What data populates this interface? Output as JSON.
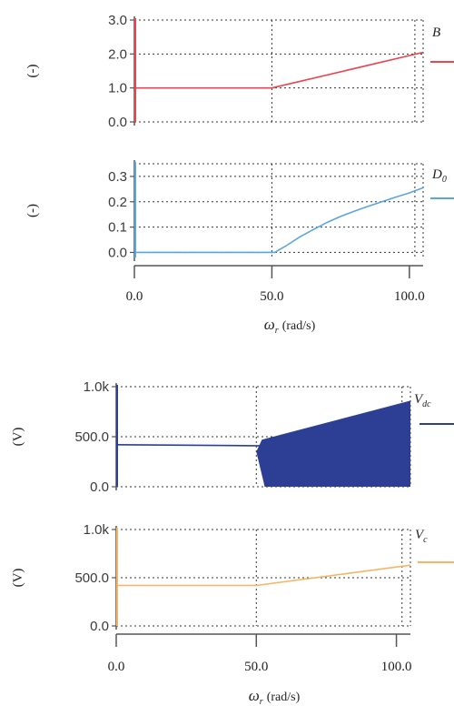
{
  "chart_data": [
    {
      "type": "line",
      "ylabel": "(-)",
      "legend": {
        "main": "B",
        "sub": "",
        "placement": "right"
      },
      "color": "#e8454f",
      "xlim": [
        0,
        105
      ],
      "ylim": [
        0,
        3
      ],
      "yticks": [
        {
          "value": 0,
          "label": "0.0"
        },
        {
          "value": 1,
          "label": "1.0"
        },
        {
          "value": 2,
          "label": "2.0"
        },
        {
          "value": 3,
          "label": "3.0"
        }
      ],
      "vlines": [
        50,
        102
      ],
      "series": [
        {
          "x": [
            0,
            50,
            105
          ],
          "y": [
            1.0,
            1.0,
            2.05
          ]
        }
      ]
    },
    {
      "type": "line",
      "ylabel": "(-)",
      "legend": {
        "main": "D",
        "sub": "0",
        "placement": "right"
      },
      "color": "#5aa6de",
      "xlim": [
        0,
        105
      ],
      "ylim": [
        -0.02,
        0.35
      ],
      "yticks": [
        {
          "value": 0,
          "label": "0.0"
        },
        {
          "value": 0.1,
          "label": "0.1"
        },
        {
          "value": 0.2,
          "label": "0.2"
        },
        {
          "value": 0.3,
          "label": "0.3"
        }
      ],
      "vlines": [
        50,
        102
      ],
      "xaxis": {
        "ticks": [
          {
            "value": 0,
            "label": "0.0"
          },
          {
            "value": 50,
            "label": "50.0"
          },
          {
            "value": 100,
            "label": "100.0"
          }
        ],
        "label_symbol": "ω",
        "label_sub": "r",
        "label_unit": "(rad/s)"
      },
      "series": [
        {
          "x": [
            0,
            51,
            55,
            60,
            65,
            70,
            75,
            80,
            85,
            90,
            95,
            100,
            105
          ],
          "y": [
            0,
            0,
            0.025,
            0.06,
            0.09,
            0.118,
            0.142,
            0.163,
            0.182,
            0.2,
            0.218,
            0.235,
            0.255
          ]
        }
      ]
    },
    {
      "type": "line",
      "ylabel": "(V)",
      "legend": {
        "main": "V",
        "sub": "dc",
        "placement": "right"
      },
      "color": "#2c3f94",
      "xlim": [
        0,
        105
      ],
      "ylim": [
        0,
        1000
      ],
      "yticks": [
        {
          "value": 0,
          "label": "0.0"
        },
        {
          "value": 500,
          "label": "500.0"
        },
        {
          "value": 1000,
          "label": "1.0k"
        }
      ],
      "vlines": [
        50,
        102
      ],
      "series": [
        {
          "x": [
            0,
            50,
            105
          ],
          "y": [
            420,
            410,
            410
          ]
        },
        {
          "x": [
            52,
            105
          ],
          "y": [
            470,
            860
          ],
          "fill_low": [
            0,
            0
          ],
          "fill_low_start": 53
        }
      ]
    },
    {
      "type": "line",
      "ylabel": "(V)",
      "legend": {
        "main": "V",
        "sub": "c",
        "placement": "right"
      },
      "color": "#f5b565",
      "xlim": [
        0,
        105
      ],
      "ylim": [
        0,
        1000
      ],
      "yticks": [
        {
          "value": 0,
          "label": "0.0"
        },
        {
          "value": 500,
          "label": "500.0"
        },
        {
          "value": 1000,
          "label": "1.0k"
        }
      ],
      "vlines": [
        50,
        102
      ],
      "xaxis": {
        "ticks": [
          {
            "value": 0,
            "label": "0.0"
          },
          {
            "value": 50,
            "label": "50.0"
          },
          {
            "value": 100,
            "label": "100.0"
          }
        ],
        "label_symbol": "ω",
        "label_sub": "r",
        "label_unit": "(rad/s)"
      },
      "series": [
        {
          "x": [
            0,
            50,
            105
          ],
          "y": [
            420,
            420,
            630
          ]
        }
      ]
    }
  ]
}
